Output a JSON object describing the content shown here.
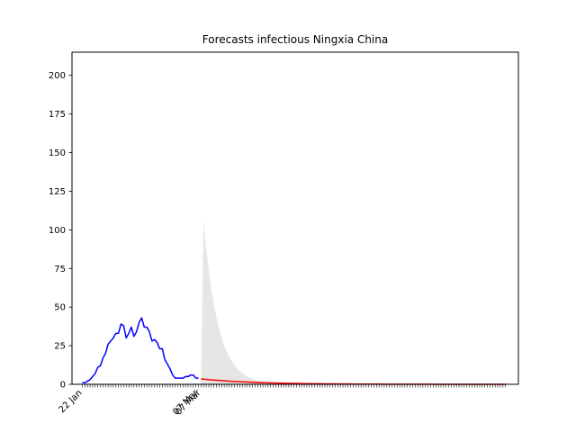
{
  "chart_data": {
    "type": "line",
    "title": "Forecasts infectious Ningxia China",
    "xlabel": "",
    "ylabel": "",
    "ylim": [
      0,
      215
    ],
    "grid": false,
    "legend": "none",
    "x_tick_labels": [
      {
        "day": 0,
        "label": "22 Jan"
      },
      {
        "day": 45,
        "label": "07 Mar"
      },
      {
        "day": 46,
        "label": "07 Mar"
      }
    ],
    "y_ticks": [
      0,
      25,
      50,
      75,
      100,
      125,
      150,
      175,
      200
    ],
    "xlim_days": [
      -4,
      169
    ],
    "series": [
      {
        "role": "observed",
        "color": "#0000ff",
        "start_day": 0,
        "values": [
          1,
          1,
          2,
          3,
          5,
          7,
          11,
          12,
          17,
          20,
          26,
          28,
          30,
          33,
          33,
          39,
          38,
          30,
          33,
          37,
          31,
          34,
          40,
          43,
          37,
          37,
          34,
          28,
          29,
          27,
          23,
          23,
          16,
          13,
          10,
          6,
          4,
          4,
          4,
          4,
          5,
          5,
          6,
          6,
          4,
          4
        ]
      },
      {
        "role": "forecast",
        "color": "#ff0000",
        "start_day": 46,
        "end_day": 164,
        "start_value": 3.5,
        "decay_rate": 0.05
      },
      {
        "role": "forecast-uncertainty-band",
        "color": "#e6e6e6",
        "start_day": 46,
        "peak_day": 47,
        "peak_value": 106,
        "rise_from": 3.5,
        "decay_rate": 0.18
      }
    ]
  }
}
